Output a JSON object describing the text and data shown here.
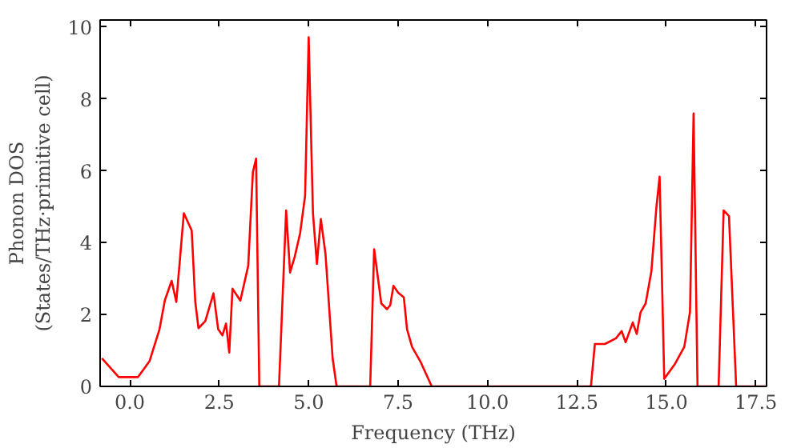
{
  "chart_data": {
    "type": "line",
    "xlabel": "Frequency (THz)",
    "ylabel": "Phonon DOS\n(States/THz·primitive cell)",
    "x": [
      -0.78,
      -0.31,
      0.23,
      0.55,
      0.83,
      0.98,
      1.17,
      1.3,
      1.51,
      1.73,
      1.83,
      1.92,
      2.11,
      2.34,
      2.47,
      2.59,
      2.69,
      2.78,
      2.87,
      3.09,
      3.31,
      3.44,
      3.53,
      3.62,
      4.17,
      4.37,
      4.48,
      4.61,
      4.76,
      4.9,
      5.0,
      5.12,
      5.23,
      5.34,
      5.47,
      5.67,
      5.78,
      6.72,
      6.83,
      7.03,
      7.19,
      7.28,
      7.37,
      7.5,
      7.66,
      7.75,
      7.89,
      8.12,
      8.44,
      12.89,
      13.0,
      13.28,
      13.59,
      13.75,
      13.86,
      14.06,
      14.17,
      14.28,
      14.42,
      14.58,
      14.72,
      14.81,
      14.94,
      15.23,
      15.5,
      15.66,
      15.76,
      15.87,
      16.46,
      16.6,
      16.75,
      16.95,
      17.8
    ],
    "series": [
      {
        "color": "#ff0000",
        "values": [
          0.78,
          0.26,
          0.26,
          0.7,
          1.59,
          2.4,
          2.94,
          2.35,
          4.82,
          4.34,
          2.35,
          1.62,
          1.82,
          2.59,
          1.59,
          1.42,
          1.75,
          0.94,
          2.72,
          2.39,
          3.36,
          5.96,
          6.34,
          0,
          0,
          4.9,
          3.17,
          3.61,
          4.26,
          5.31,
          9.72,
          4.82,
          3.41,
          4.66,
          3.69,
          0.78,
          0,
          0,
          3.82,
          2.31,
          2.15,
          2.26,
          2.8,
          2.61,
          2.48,
          1.59,
          1.1,
          0.7,
          0,
          0,
          1.18,
          1.18,
          1.34,
          1.54,
          1.23,
          1.78,
          1.46,
          2.07,
          2.31,
          3.2,
          4.98,
          5.84,
          0.21,
          0.61,
          1.1,
          2.07,
          7.6,
          0,
          0,
          4.9,
          4.74,
          0,
          0
        ]
      }
    ],
    "xlim": [
      -0.83,
      17.8
    ],
    "ylim": [
      0,
      10.2
    ],
    "xticks": [
      {
        "value": 0,
        "label": "0.0"
      },
      {
        "value": 2.5,
        "label": "2.5"
      },
      {
        "value": 5,
        "label": "5.0"
      },
      {
        "value": 7.5,
        "label": "7.5"
      },
      {
        "value": 10,
        "label": "10.0"
      },
      {
        "value": 12.5,
        "label": "12.5"
      },
      {
        "value": 15,
        "label": "15.0"
      },
      {
        "value": 17.5,
        "label": "17.5"
      }
    ],
    "yticks": [
      0,
      2,
      4,
      6,
      8,
      10
    ],
    "grid": false,
    "line_style": "solid"
  }
}
